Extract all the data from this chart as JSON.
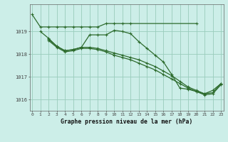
{
  "xlabel": "Graphe pression niveau de la mer (hPa)",
  "bg_color": "#cceee8",
  "grid_color": "#99ccbb",
  "line_color": "#2d6b2d",
  "ylim": [
    1015.5,
    1020.2
  ],
  "xlim": [
    -0.3,
    23.3
  ],
  "yticks": [
    1016,
    1017,
    1018,
    1019
  ],
  "xticks": [
    0,
    1,
    2,
    3,
    4,
    5,
    6,
    7,
    8,
    9,
    10,
    11,
    12,
    13,
    14,
    15,
    16,
    17,
    18,
    19,
    20,
    21,
    22,
    23
  ],
  "line1_x": [
    0,
    1,
    2,
    3,
    4,
    5,
    6,
    7,
    8,
    9,
    10,
    11,
    12,
    20
  ],
  "line1_y": [
    1019.75,
    1019.2,
    1019.2,
    1019.2,
    1019.2,
    1019.2,
    1019.2,
    1019.2,
    1019.2,
    1019.35,
    1019.35,
    1019.35,
    1019.35,
    1019.35
  ],
  "line2_x": [
    1,
    2,
    3,
    4,
    5,
    6,
    7,
    8,
    9,
    10,
    11,
    12,
    13,
    14,
    15,
    16,
    17,
    18,
    19,
    20,
    21,
    22,
    23
  ],
  "line2_y": [
    1019.0,
    1018.7,
    1018.35,
    1018.15,
    1018.2,
    1018.3,
    1018.85,
    1018.85,
    1018.85,
    1019.05,
    1019.0,
    1018.9,
    1018.55,
    1018.25,
    1017.95,
    1017.65,
    1017.1,
    1016.5,
    1016.45,
    1016.35,
    1016.25,
    1016.4,
    1016.7
  ],
  "line3_x": [
    2,
    3,
    4,
    5,
    6,
    7,
    8,
    9,
    10,
    11,
    12,
    13,
    14,
    15,
    16,
    17,
    18,
    19,
    20,
    21,
    22,
    23
  ],
  "line3_y": [
    1018.65,
    1018.35,
    1018.15,
    1018.2,
    1018.3,
    1018.3,
    1018.25,
    1018.15,
    1018.05,
    1017.95,
    1017.85,
    1017.75,
    1017.6,
    1017.45,
    1017.25,
    1017.05,
    1016.8,
    1016.55,
    1016.4,
    1016.25,
    1016.3,
    1016.7
  ],
  "line4_x": [
    2,
    3,
    4,
    5,
    6,
    7,
    8,
    9,
    10,
    11,
    12,
    13,
    14,
    15,
    16,
    17,
    18,
    19,
    20,
    21,
    22,
    23
  ],
  "line4_y": [
    1018.6,
    1018.3,
    1018.1,
    1018.15,
    1018.25,
    1018.25,
    1018.2,
    1018.1,
    1017.95,
    1017.85,
    1017.75,
    1017.6,
    1017.45,
    1017.3,
    1017.1,
    1016.9,
    1016.7,
    1016.5,
    1016.35,
    1016.2,
    1016.25,
    1016.65
  ]
}
